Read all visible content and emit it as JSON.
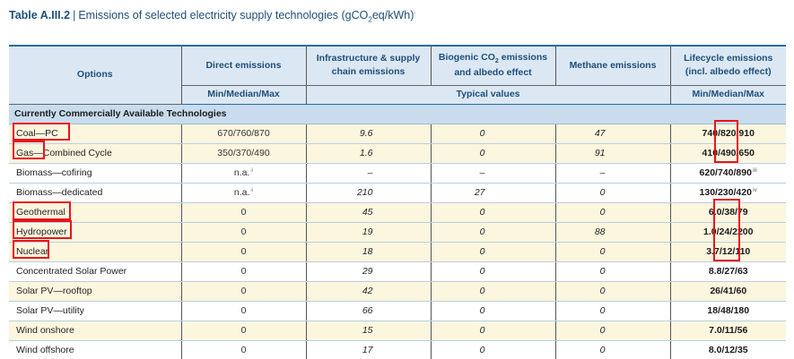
{
  "title": {
    "table_id": "Table A.III.2",
    "separator": "|",
    "text": "Emissions of selected electricity supply technologies (gCO",
    "sub": "2",
    "text2": "eq/kWh)",
    "footnote": "i"
  },
  "header": {
    "options": "Options",
    "direct": "Direct emissions",
    "infra": "Infrastructure & supply chain emissions",
    "biogenic_a": "Biogenic CO",
    "biogenic_sub": "2",
    "biogenic_b": " emissions and albedo effect",
    "methane": "Methane emissions",
    "lifecycle": "Lifecycle emissions (incl. albedo effect)",
    "direct_sub": "Min/Median/Max",
    "typical": "Typical values",
    "lifecycle_sub": "Min/Median/Max"
  },
  "section": "Currently Commercially Available Technologies",
  "rows": [
    {
      "option": "Coal—PC",
      "direct": "670/760/870",
      "direct_fn": "",
      "infra": "9.6",
      "bio": "0",
      "meth": "47",
      "life": "740/820/910",
      "life_fn": ""
    },
    {
      "option": "Gas—Combined Cycle",
      "direct": "350/370/490",
      "direct_fn": "",
      "infra": "1.6",
      "bio": "0",
      "meth": "91",
      "life": "410/490/650",
      "life_fn": ""
    },
    {
      "option": "Biomass—cofiring",
      "direct": "n.a.",
      "direct_fn": "ii",
      "infra": "–",
      "bio": "–",
      "meth": "–",
      "life": "620/740/890",
      "life_fn": "iii"
    },
    {
      "option": "Biomass—dedicated",
      "direct": "n.a.",
      "direct_fn": "ii",
      "infra": "210",
      "bio": "27",
      "meth": "0",
      "life": "130/230/420",
      "life_fn": "iv"
    },
    {
      "option": "Geothermal",
      "direct": "0",
      "direct_fn": "",
      "infra": "45",
      "bio": "0",
      "meth": "0",
      "life": "6.0/38/79",
      "life_fn": ""
    },
    {
      "option": "Hydropower",
      "direct": "0",
      "direct_fn": "",
      "infra": "19",
      "bio": "0",
      "meth": "88",
      "life": "1.0/24/2200",
      "life_fn": ""
    },
    {
      "option": "Nuclear",
      "direct": "0",
      "direct_fn": "",
      "infra": "18",
      "bio": "0",
      "meth": "0",
      "life": "3.7/12/110",
      "life_fn": ""
    },
    {
      "option": "Concentrated Solar Power",
      "direct": "0",
      "direct_fn": "",
      "infra": "29",
      "bio": "0",
      "meth": "0",
      "life": "8.8/27/63",
      "life_fn": ""
    },
    {
      "option": "Solar PV—rooftop",
      "direct": "0",
      "direct_fn": "",
      "infra": "42",
      "bio": "0",
      "meth": "0",
      "life": "26/41/60",
      "life_fn": ""
    },
    {
      "option": "Solar PV—utility",
      "direct": "0",
      "direct_fn": "",
      "infra": "66",
      "bio": "0",
      "meth": "0",
      "life": "18/48/180",
      "life_fn": ""
    },
    {
      "option": "Wind onshore",
      "direct": "0",
      "direct_fn": "",
      "infra": "15",
      "bio": "0",
      "meth": "0",
      "life": "7.0/11/56",
      "life_fn": ""
    },
    {
      "option": "Wind offshore",
      "direct": "0",
      "direct_fn": "",
      "infra": "17",
      "bio": "0",
      "meth": "0",
      "life": "8.0/12/35",
      "life_fn": ""
    }
  ],
  "colors": {
    "title": "#1f4e79",
    "header_bg": "#dbe8f4",
    "section_bg": "#c9dcee",
    "alt_row_bg": "#fdf6df",
    "highlight": "#e8141b"
  }
}
